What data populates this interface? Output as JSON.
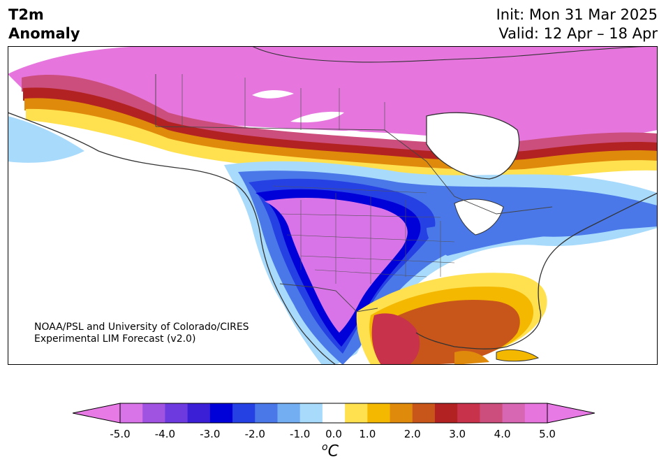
{
  "title": {
    "variable_line1": "T2m",
    "variable_line2": "Anomaly",
    "init": "Init: Mon 31 Mar 2025",
    "valid": "Valid: 12 Apr – 18 Apr"
  },
  "credit": {
    "line1": "NOAA/PSL and University of Colorado/CIRES",
    "line2": "Experimental LIM Forecast (v2.0)"
  },
  "colorbar": {
    "unit_base": "C",
    "unit_sup": "o",
    "ticks": [
      "-5.0",
      "-4.0",
      "-3.0",
      "-2.0",
      "-1.0",
      "0.0",
      "1.0",
      "2.0",
      "3.0",
      "4.0",
      "5.0"
    ],
    "levels": [
      -5.0,
      -4.5,
      -4.0,
      -3.5,
      -3.0,
      -2.5,
      -2.0,
      -1.5,
      -1.0,
      -0.5,
      0.5,
      1.0,
      1.5,
      2.0,
      2.5,
      3.0,
      3.5,
      4.0,
      4.5,
      5.0
    ],
    "colors": [
      "#d973e8",
      "#a052e0",
      "#6c3adf",
      "#3a1fd6",
      "#0000d9",
      "#2540e3",
      "#4a78e8",
      "#74aef2",
      "#a8dafc",
      "#ffffff",
      "#ffe150",
      "#f4b800",
      "#e08a0c",
      "#c8561a",
      "#b22222",
      "#c8324a",
      "#cc4e7c",
      "#d766b3",
      "#e676de"
    ],
    "extend_low_color": "#e87ae6",
    "extend_high_color": "#e87ae6"
  },
  "map": {
    "land_color": "#ffffff",
    "coast_color": "#333333",
    "warm_anomaly": "#c8561a",
    "cold_anomaly": "#0000d9"
  }
}
